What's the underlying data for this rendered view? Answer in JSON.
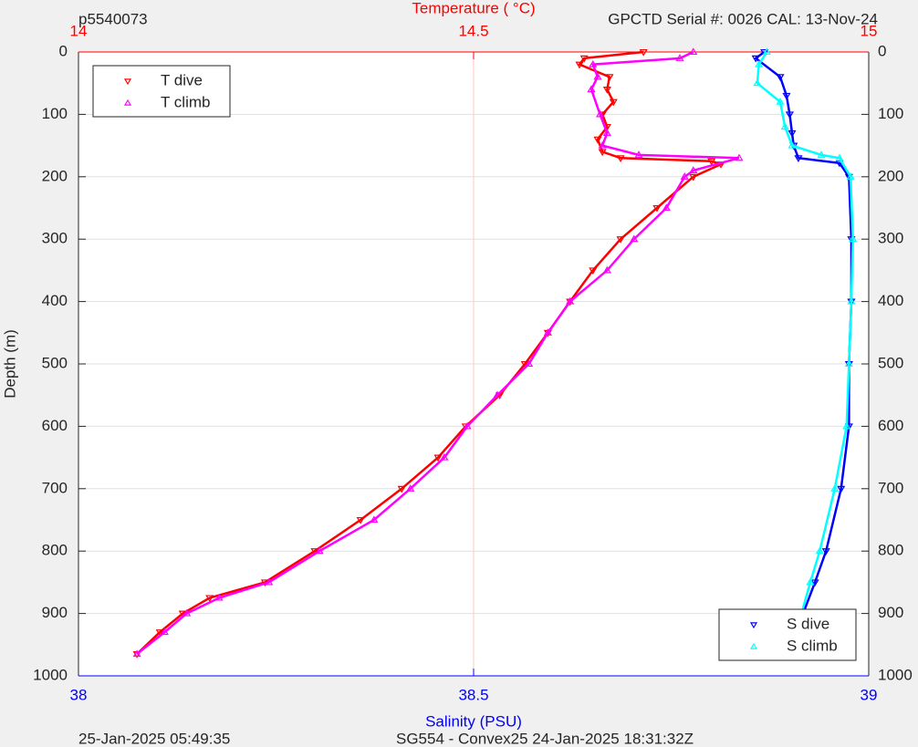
{
  "chart_data": {
    "type": "scatter",
    "title": "p5540073",
    "subtitle": "GPCTD Serial #: 0026 CAL: 13-Nov-24",
    "x2label": "Temperature (    °C)",
    "xlabel": "Salinity (PSU)",
    "ylabel": "Depth (m)",
    "footer_left": "25-Jan-2025 05:49:35",
    "footer_center": "SG554 - Convex25 24-Jan-2025 18:31:32Z",
    "xlim": [
      38,
      39
    ],
    "xticks": [
      38,
      38.5,
      39
    ],
    "x2lim": [
      14,
      15
    ],
    "x2ticks": [
      14,
      14.5,
      15
    ],
    "ylim": [
      0,
      1000
    ],
    "yticks": [
      0,
      100,
      200,
      300,
      400,
      500,
      600,
      700,
      800,
      900,
      1000
    ],
    "y_reversed": true,
    "grid": true,
    "legend_x2": "upper left",
    "legend_x": "lower right",
    "series": [
      {
        "name": "T dive",
        "color": "#ff0000",
        "marker": "v",
        "axis": "x2",
        "x": [
          14.715,
          14.64,
          14.634,
          14.672,
          14.669,
          14.677,
          14.663,
          14.669,
          14.657,
          14.663,
          14.686,
          14.801,
          14.813,
          14.778,
          14.732,
          14.686,
          14.651,
          14.622,
          14.594,
          14.565,
          14.533,
          14.49,
          14.455,
          14.409,
          14.357,
          14.299,
          14.236,
          14.166,
          14.132,
          14.103,
          14.074
        ],
        "y": [
          0,
          10,
          20,
          40,
          60,
          80,
          100,
          120,
          140,
          160,
          170,
          175,
          180,
          200,
          250,
          300,
          350,
          400,
          450,
          500,
          550,
          600,
          650,
          700,
          750,
          800,
          850,
          875,
          900,
          930,
          965
        ]
      },
      {
        "name": "T climb",
        "color": "#ff00ff",
        "marker": "^",
        "axis": "x2",
        "x": [
          14.778,
          14.761,
          14.651,
          14.657,
          14.649,
          14.66,
          14.669,
          14.663,
          14.709,
          14.836,
          14.778,
          14.767,
          14.744,
          14.703,
          14.669,
          14.622,
          14.594,
          14.57,
          14.53,
          14.492,
          14.463,
          14.42,
          14.374,
          14.305,
          14.241,
          14.178,
          14.137,
          14.109,
          14.074
        ],
        "y": [
          0,
          10,
          20,
          40,
          60,
          100,
          130,
          150,
          165,
          170,
          190,
          200,
          250,
          300,
          350,
          400,
          450,
          500,
          550,
          600,
          650,
          700,
          750,
          800,
          850,
          875,
          900,
          930,
          965
        ]
      },
      {
        "name": "S dive",
        "color": "#0000ff",
        "marker": "v",
        "axis": "x",
        "x": [
          38.868,
          38.857,
          38.888,
          38.896,
          38.9,
          38.903,
          38.905,
          38.911,
          38.963,
          38.975,
          38.978,
          38.978,
          38.975,
          38.975,
          38.965,
          38.946,
          38.932,
          38.917,
          38.909
        ],
        "y": [
          0,
          10,
          40,
          70,
          100,
          130,
          150,
          170,
          178,
          200,
          300,
          400,
          500,
          600,
          700,
          800,
          850,
          900,
          965
        ]
      },
      {
        "name": "S climb",
        "color": "#00ffff",
        "marker": "^",
        "axis": "x",
        "x": [
          38.871,
          38.861,
          38.859,
          38.888,
          38.894,
          38.903,
          38.94,
          38.963,
          38.977,
          38.98,
          38.978,
          38.975,
          38.972,
          38.957,
          38.938,
          38.926,
          38.915,
          38.909
        ],
        "y": [
          0,
          20,
          50,
          80,
          120,
          150,
          165,
          170,
          200,
          300,
          400,
          500,
          600,
          700,
          800,
          850,
          900,
          965
        ]
      }
    ]
  }
}
